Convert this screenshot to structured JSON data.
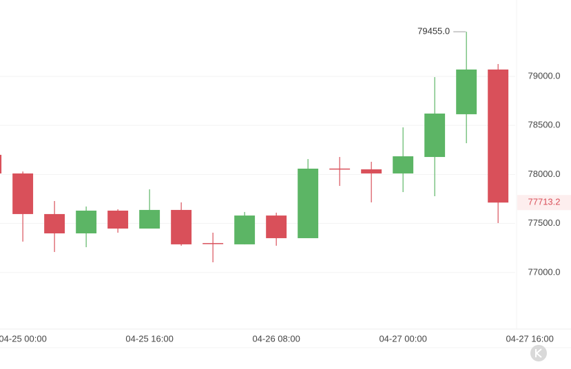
{
  "chart_data": {
    "type": "candlestick",
    "open": [
      78200,
      78010,
      77596,
      77399,
      77631,
      77448,
      77638,
      77300,
      77287,
      77581,
      77350,
      78060,
      78052,
      78010,
      78178,
      78614,
      79070
    ],
    "high": [
      78210,
      78030,
      77729,
      77673,
      77645,
      77848,
      77715,
      77406,
      77617,
      77610,
      78157,
      78178,
      78129,
      78480,
      78993,
      79455,
      79126
    ],
    "low": [
      78000,
      77315,
      77209,
      77258,
      77406,
      77448,
      77273,
      77104,
      77287,
      77273,
      77350,
      77883,
      77715,
      77820,
      77778,
      78319,
      77504
    ],
    "close": [
      78010,
      77596,
      77399,
      77631,
      77448,
      77638,
      77287,
      77290,
      77581,
      77350,
      78059,
      78050,
      78010,
      78185,
      78621,
      79070,
      77713.2
    ],
    "up_color": "#5cb565",
    "down_color": "#d9505a",
    "xlim": [
      0.28,
      16.54
    ],
    "xticks": [
      {
        "value": 1,
        "label": "04-25 00:00"
      },
      {
        "value": 5,
        "label": "04-25 16:00"
      },
      {
        "value": 9,
        "label": "04-26 08:00"
      },
      {
        "value": 13,
        "label": "04-27 00:00"
      },
      {
        "value": 17,
        "label": "04-27 16:00"
      }
    ],
    "ylim": [
      76423,
      79779
    ],
    "yticks": [
      {
        "value": 77000,
        "label": "77000.0"
      },
      {
        "value": 77500,
        "label": "77500.0"
      },
      {
        "value": 78000,
        "label": "78000.0"
      },
      {
        "value": 78500,
        "label": "78500.0"
      },
      {
        "value": 79000,
        "label": "79000.0"
      }
    ],
    "grid": true,
    "last_price": 77713.2,
    "max_label": "79455.0"
  }
}
